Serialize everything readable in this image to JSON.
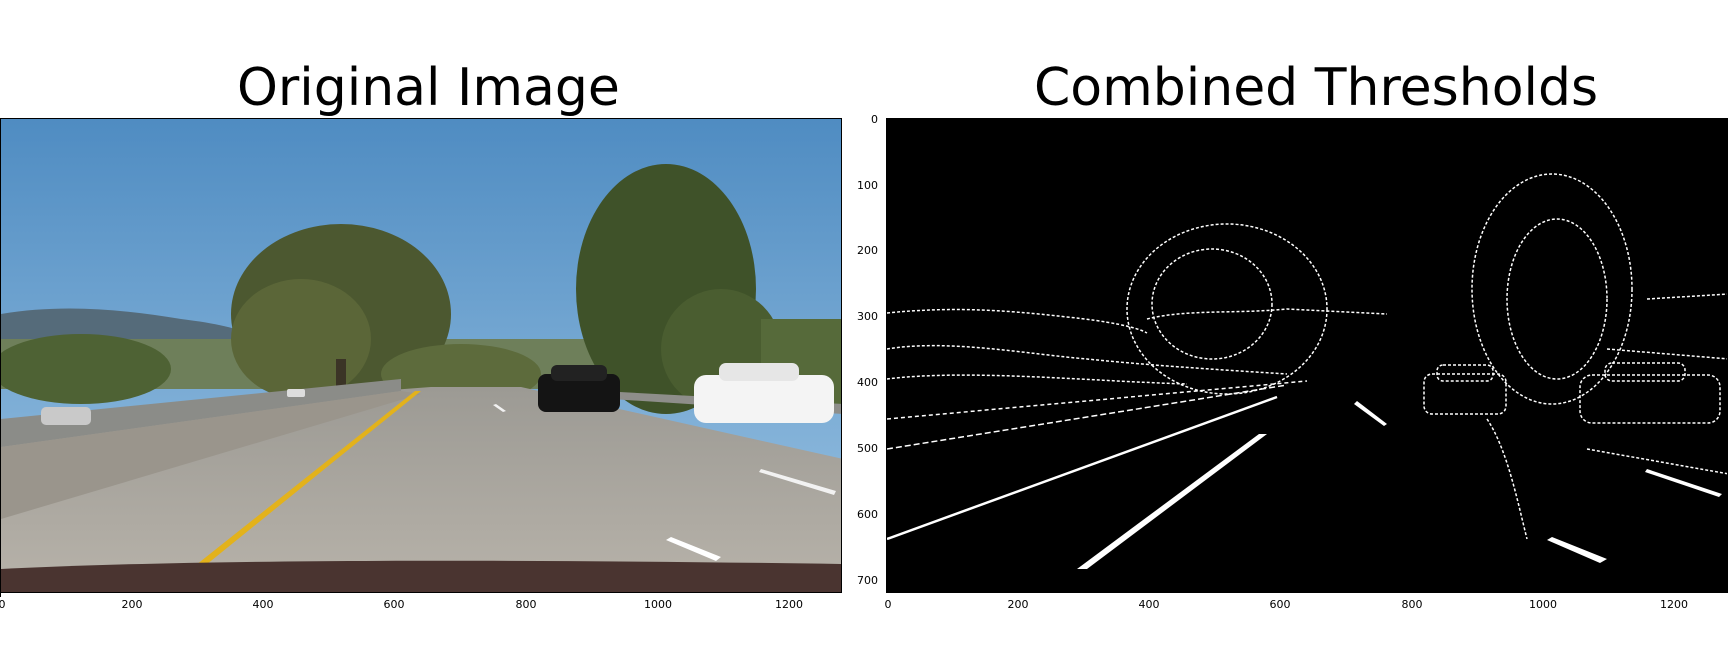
{
  "left": {
    "title": "Original Image",
    "xticks": [
      "0",
      "200",
      "400",
      "600",
      "800",
      "1000",
      "1200"
    ]
  },
  "right": {
    "title": "Combined Thresholds",
    "xticks": [
      "0",
      "200",
      "400",
      "600",
      "800",
      "1000",
      "1200"
    ],
    "yticks": [
      "0",
      "100",
      "200",
      "300",
      "400",
      "500",
      "600",
      "700"
    ]
  },
  "colors": {
    "sky": "#5a93c4",
    "road": "#a8a49c",
    "lane_yellow": "#e8b21a",
    "tree": "#4d5a2c"
  }
}
